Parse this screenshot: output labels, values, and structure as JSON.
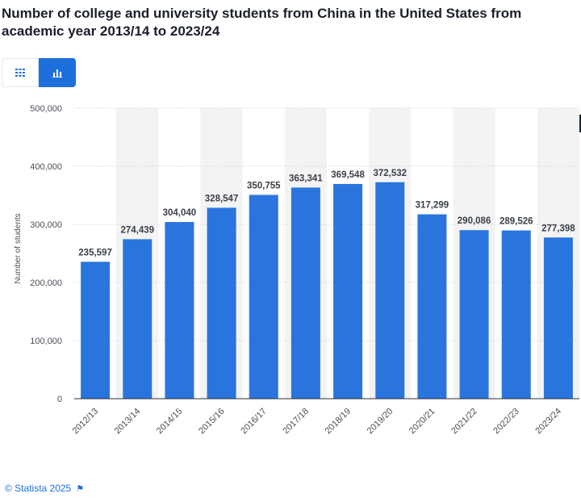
{
  "title": {
    "line1": "Number of college and university students from China in the United States from",
    "line2": "academic year 2013/14 to 2023/24"
  },
  "toggle": {
    "table_icon": "table-grid-icon",
    "chart_icon": "bar-chart-icon",
    "active": "chart"
  },
  "colors": {
    "bar": "#2a75dd",
    "active_toggle": "#1d6fdc",
    "band": "#f3f3f4",
    "grid": "#c9ccd1"
  },
  "chart_data": {
    "type": "bar",
    "categories": [
      "2012/13",
      "2013/14",
      "2014/15",
      "2015/16",
      "2016/17",
      "2017/18",
      "2018/19",
      "2019/20",
      "2020/21",
      "2021/22",
      "2022/23",
      "2023/24"
    ],
    "values": [
      235597,
      274439,
      304040,
      328547,
      350755,
      363341,
      369548,
      372532,
      317299,
      290086,
      289526,
      277398
    ],
    "value_labels": [
      "235,597",
      "274,439",
      "304,040",
      "328,547",
      "350,755",
      "363,341",
      "369,548",
      "372,532",
      "317,299",
      "290,086",
      "289,526",
      "277,398"
    ],
    "ylabel": "Number of students",
    "xlabel": "",
    "ylim": [
      0,
      500000
    ],
    "yticks": [
      0,
      100000,
      200000,
      300000,
      400000,
      500000
    ],
    "ytick_labels": [
      "0",
      "100,000",
      "200,000",
      "300,000",
      "400,000",
      "500,000"
    ],
    "grid": true,
    "legend": "none"
  },
  "footer": {
    "credit": "© Statista 2025",
    "flag_icon": "flag-icon"
  }
}
